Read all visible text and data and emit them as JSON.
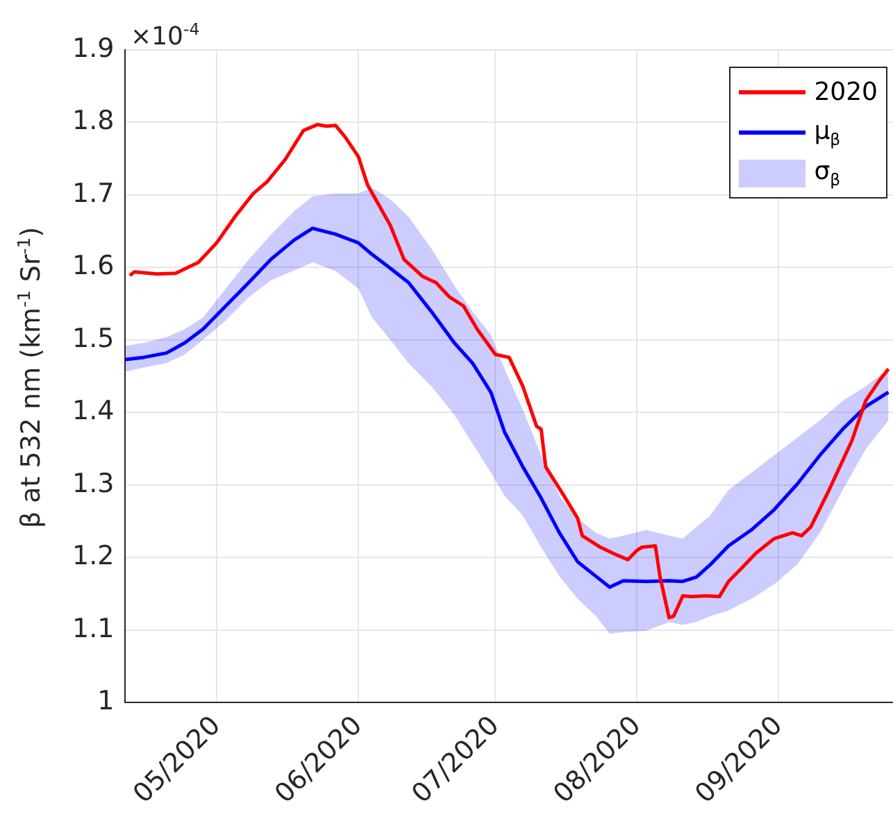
{
  "chart_data": {
    "type": "line",
    "ylabel": "β at 532 nm (km$^{-1}$ Sr$^{-1}$)",
    "annotations": [
      "×10$^{-4}$",
      "σ$_{β}$"
    ],
    "xlim": [
      "2020-04-11",
      "2020-09-26"
    ],
    "xticks": [
      {
        "value": "2020-05-01",
        "label": "05/2020"
      },
      {
        "value": "2020-06-01",
        "label": "06/2020"
      },
      {
        "value": "2020-07-01",
        "label": "07/2020"
      },
      {
        "value": "2020-08-01",
        "label": "08/2020"
      },
      {
        "value": "2020-09-01",
        "label": "09/2020"
      }
    ],
    "ylim": [
      1,
      1.9
    ],
    "yticks": [
      1,
      1.1,
      1.2,
      1.3,
      1.4,
      1.5,
      1.6,
      1.7,
      1.8,
      1.9
    ],
    "grid": true,
    "legend": "top right",
    "marker": "none",
    "line_style": "solid",
    "series": [
      {
        "name": "2020",
        "color": "#ff0000",
        "x": [
          "2020-04-12",
          "2020-04-13",
          "2020-04-18",
          "2020-04-22",
          "2020-04-27",
          "2020-05-01",
          "2020-05-05",
          "2020-05-09",
          "2020-05-12",
          "2020-05-16",
          "2020-05-20",
          "2020-05-23",
          "2020-05-25",
          "2020-05-27",
          "2020-05-29",
          "2020-06-01",
          "2020-06-03",
          "2020-06-08",
          "2020-06-11",
          "2020-06-15",
          "2020-06-18",
          "2020-06-21",
          "2020-06-24",
          "2020-06-27",
          "2020-07-01",
          "2020-07-04",
          "2020-07-07",
          "2020-07-10",
          "2020-07-11",
          "2020-07-12",
          "2020-07-16",
          "2020-07-19",
          "2020-07-20",
          "2020-07-24",
          "2020-07-27",
          "2020-07-30",
          "2020-08-01",
          "2020-08-02",
          "2020-08-05",
          "2020-08-06",
          "2020-08-08",
          "2020-08-09",
          "2020-08-11",
          "2020-08-13",
          "2020-08-16",
          "2020-08-19",
          "2020-08-21",
          "2020-08-24",
          "2020-08-27",
          "2020-08-31",
          "2020-09-04",
          "2020-09-06",
          "2020-09-08",
          "2020-09-12",
          "2020-09-17",
          "2020-09-20",
          "2020-09-23",
          "2020-09-25"
        ],
        "values": [
          1.589,
          1.594,
          1.591,
          1.592,
          1.607,
          1.634,
          1.67,
          1.702,
          1.718,
          1.749,
          1.789,
          1.797,
          1.795,
          1.796,
          1.781,
          1.753,
          1.714,
          1.658,
          1.611,
          1.588,
          1.579,
          1.559,
          1.547,
          1.515,
          1.48,
          1.476,
          1.436,
          1.381,
          1.377,
          1.325,
          1.285,
          1.254,
          1.23,
          1.214,
          1.205,
          1.197,
          1.21,
          1.214,
          1.216,
          1.174,
          1.117,
          1.119,
          1.147,
          1.146,
          1.147,
          1.146,
          1.167,
          1.186,
          1.206,
          1.226,
          1.234,
          1.23,
          1.242,
          1.293,
          1.361,
          1.416,
          1.444,
          1.46
        ]
      },
      {
        "name": "μ$_{β}$",
        "color": "#0000ff",
        "x": [
          "2020-04-11",
          "2020-04-15",
          "2020-04-20",
          "2020-04-24",
          "2020-04-28",
          "2020-05-03",
          "2020-05-08",
          "2020-05-13",
          "2020-05-18",
          "2020-05-22",
          "2020-05-27",
          "2020-06-01",
          "2020-06-04",
          "2020-06-08",
          "2020-06-12",
          "2020-06-17",
          "2020-06-22",
          "2020-06-26",
          "2020-06-30",
          "2020-07-03",
          "2020-07-07",
          "2020-07-11",
          "2020-07-15",
          "2020-07-19",
          "2020-07-23",
          "2020-07-26",
          "2020-07-29",
          "2020-08-03",
          "2020-08-08",
          "2020-08-11",
          "2020-08-14",
          "2020-08-17",
          "2020-08-21",
          "2020-08-26",
          "2020-08-31",
          "2020-09-05",
          "2020-09-10",
          "2020-09-15",
          "2020-09-20",
          "2020-09-25"
        ],
        "values": [
          1.473,
          1.476,
          1.482,
          1.496,
          1.515,
          1.547,
          1.579,
          1.612,
          1.638,
          1.654,
          1.646,
          1.634,
          1.618,
          1.599,
          1.579,
          1.539,
          1.496,
          1.468,
          1.428,
          1.373,
          1.325,
          1.282,
          1.234,
          1.194,
          1.174,
          1.159,
          1.168,
          1.167,
          1.168,
          1.167,
          1.173,
          1.19,
          1.216,
          1.238,
          1.266,
          1.301,
          1.341,
          1.377,
          1.408,
          1.428
        ],
        "upper": [
          1.492,
          1.496,
          1.504,
          1.515,
          1.531,
          1.571,
          1.611,
          1.646,
          1.678,
          1.698,
          1.702,
          1.702,
          1.71,
          1.694,
          1.67,
          1.626,
          1.575,
          1.539,
          1.507,
          1.46,
          1.404,
          1.341,
          1.285,
          1.254,
          1.234,
          1.226,
          1.23,
          1.238,
          1.23,
          1.226,
          1.242,
          1.258,
          1.293,
          1.317,
          1.341,
          1.365,
          1.389,
          1.416,
          1.436,
          1.46
        ],
        "lower": [
          1.456,
          1.462,
          1.468,
          1.48,
          1.5,
          1.527,
          1.559,
          1.583,
          1.596,
          1.607,
          1.595,
          1.571,
          1.531,
          1.5,
          1.468,
          1.436,
          1.397,
          1.357,
          1.317,
          1.285,
          1.258,
          1.214,
          1.174,
          1.143,
          1.119,
          1.095,
          1.097,
          1.099,
          1.111,
          1.107,
          1.111,
          1.119,
          1.127,
          1.143,
          1.163,
          1.19,
          1.234,
          1.293,
          1.349,
          1.389
        ]
      }
    ]
  }
}
